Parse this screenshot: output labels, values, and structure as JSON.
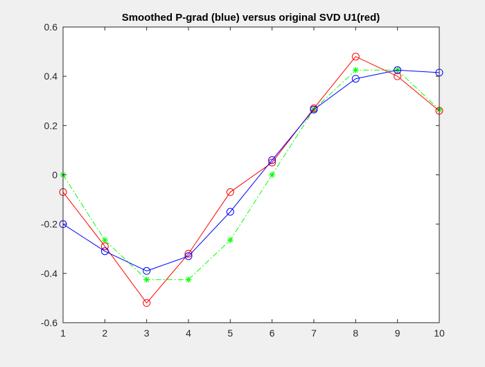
{
  "chart_data": {
    "type": "line",
    "title": "Smoothed P-grad (blue) versus original SVD U1(red)",
    "xlabel": "",
    "ylabel": "",
    "xlim": [
      1,
      10
    ],
    "ylim": [
      -0.6,
      0.6
    ],
    "x": [
      1,
      2,
      3,
      4,
      5,
      6,
      7,
      8,
      9,
      10
    ],
    "xticks": [
      1,
      2,
      3,
      4,
      5,
      6,
      7,
      8,
      9,
      10
    ],
    "yticks": [
      -0.6,
      -0.4,
      -0.2,
      0,
      0.2,
      0.4,
      0.6
    ],
    "xtick_labels": [
      "1",
      "2",
      "3",
      "4",
      "5",
      "6",
      "7",
      "8",
      "9",
      "10"
    ],
    "ytick_labels": [
      "-0.6",
      "-0.4",
      "-0.2",
      "0",
      "0.2",
      "0.4",
      "0.6"
    ],
    "grid": false,
    "legend": "none",
    "series": [
      {
        "color": "#00ff00",
        "marker": "asterisk",
        "line_style": "dash-dot",
        "values": [
          0.0,
          -0.265,
          -0.425,
          -0.425,
          -0.265,
          0.0,
          0.265,
          0.425,
          0.425,
          0.265
        ]
      },
      {
        "color": "#ff0000",
        "marker": "circle",
        "line_style": "solid",
        "values": [
          -0.07,
          -0.29,
          -0.52,
          -0.32,
          -0.07,
          0.05,
          0.27,
          0.48,
          0.4,
          0.26
        ]
      },
      {
        "color": "#0000ff",
        "marker": "circle",
        "line_style": "solid",
        "values": [
          -0.2,
          -0.31,
          -0.39,
          -0.33,
          -0.15,
          0.06,
          0.265,
          0.39,
          0.425,
          0.415
        ]
      }
    ]
  }
}
